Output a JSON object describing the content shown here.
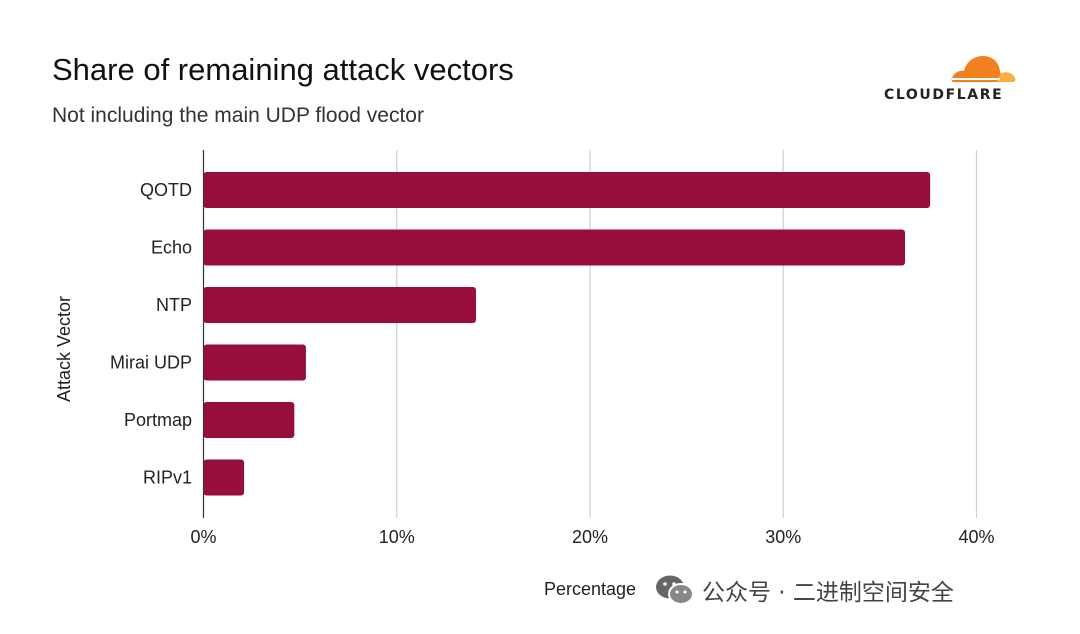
{
  "header": {
    "title": "Share of remaining attack vectors",
    "subtitle": "Not including the main UDP flood vector"
  },
  "logo": {
    "text": "CLOUDFLARE",
    "colors": [
      "#f38020",
      "#faae40"
    ]
  },
  "watermark": {
    "text": "公众号 · 二进制空间安全",
    "icon": "wechat-icon"
  },
  "chart_data": {
    "type": "bar",
    "orientation": "horizontal",
    "categories": [
      "QOTD",
      "Echo",
      "NTP",
      "Mirai UDP",
      "Portmap",
      "RIPv1"
    ],
    "values": [
      37.6,
      36.3,
      14.1,
      5.3,
      4.7,
      2.1
    ],
    "xlabel": "Percentage",
    "ylabel": "Attack Vector",
    "xlim": [
      0,
      40
    ],
    "xticks": [
      0,
      10,
      20,
      30,
      40
    ],
    "xtick_labels": [
      "0%",
      "10%",
      "20%",
      "30%",
      "40%"
    ],
    "bar_color": "#970d3e",
    "grid": true
  }
}
